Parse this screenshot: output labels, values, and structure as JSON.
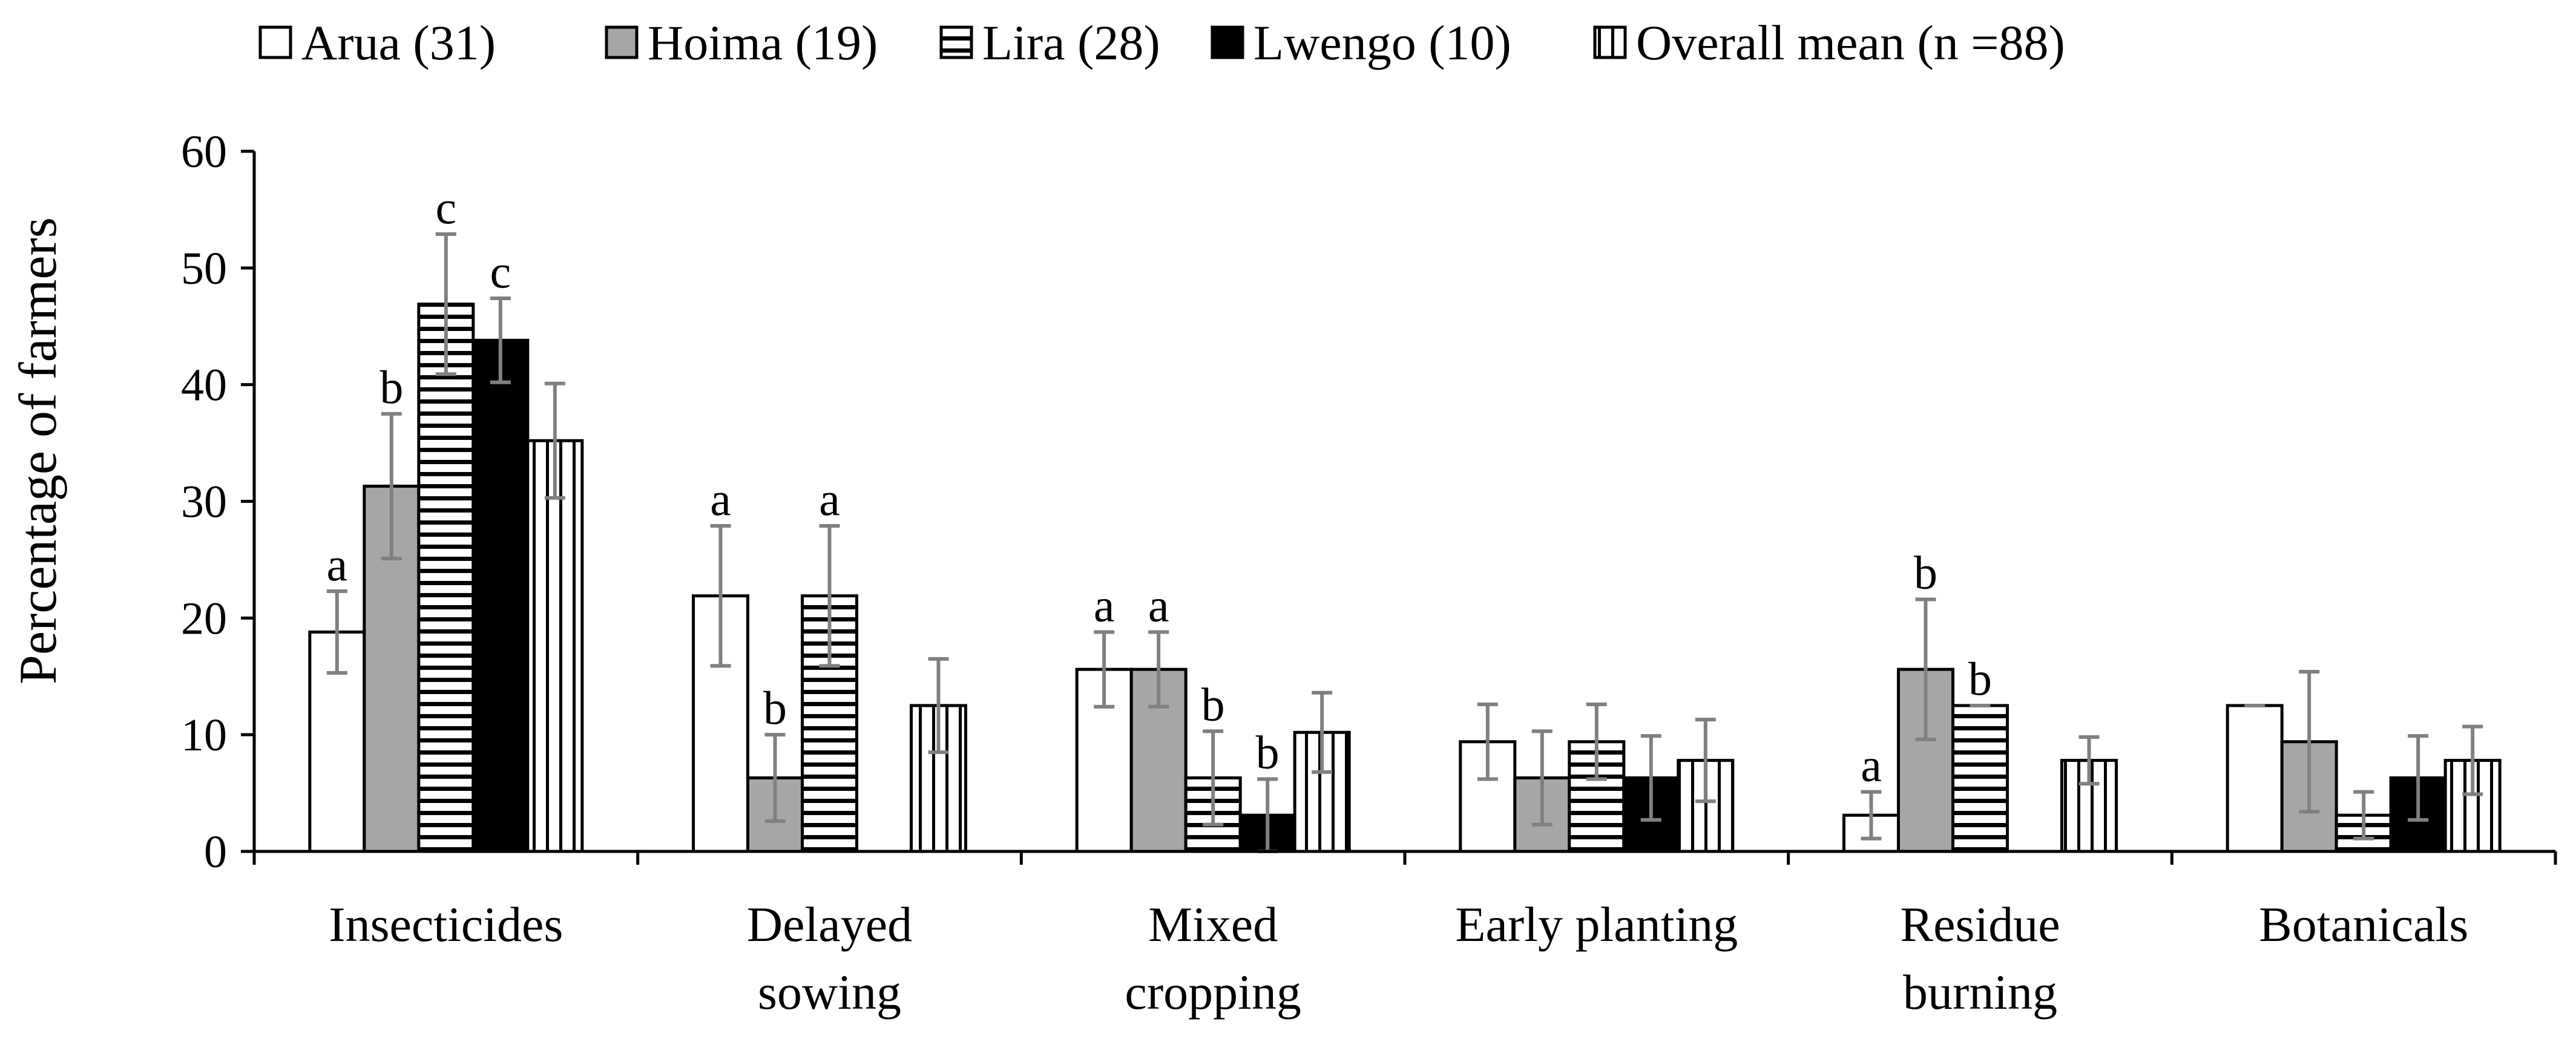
{
  "chart_data": {
    "type": "bar",
    "title": "",
    "xlabel": "",
    "ylabel": "Percentage of farmers",
    "ylim": [
      0,
      60
    ],
    "yticks": [
      "0",
      "10",
      "20",
      "30",
      "40",
      "50",
      "60"
    ],
    "grid": false,
    "legend_position": "top",
    "categories": [
      [
        "Insecticides"
      ],
      [
        "Delayed",
        "sowing"
      ],
      [
        "Mixed",
        "cropping"
      ],
      [
        "Early planting"
      ],
      [
        "Residue",
        "burning"
      ],
      [
        "Botanicals"
      ]
    ],
    "series": [
      {
        "name": "Arua (31)",
        "pattern": "white",
        "values": [
          18.8,
          21.9,
          15.6,
          9.4,
          3.1,
          12.5
        ],
        "errors": [
          3.5,
          6.0,
          3.2,
          3.2,
          2.0,
          0.0
        ],
        "labels": [
          "a",
          "a",
          "a",
          "",
          "a",
          ""
        ]
      },
      {
        "name": "Hoima (19)",
        "pattern": "gray",
        "values": [
          31.3,
          6.3,
          15.6,
          6.3,
          15.6,
          9.4
        ],
        "errors": [
          6.2,
          3.7,
          3.2,
          4.0,
          6.0,
          6.0
        ],
        "labels": [
          "b",
          "b",
          "a",
          "",
          "b",
          ""
        ]
      },
      {
        "name": "Lira (28)",
        "pattern": "hstripes",
        "values": [
          46.9,
          21.9,
          6.3,
          9.4,
          12.5,
          3.1
        ],
        "errors": [
          6.0,
          6.0,
          4.0,
          3.2,
          0.0,
          2.0
        ],
        "labels": [
          "c",
          "a",
          "b",
          "",
          "b",
          ""
        ]
      },
      {
        "name": "Lwengo (10)",
        "pattern": "black",
        "values": [
          43.8,
          0,
          3.1,
          6.3,
          0,
          6.3
        ],
        "errors": [
          3.6,
          0,
          3.1,
          3.6,
          0,
          3.6
        ],
        "labels": [
          "c",
          "",
          "b",
          "",
          "",
          ""
        ]
      },
      {
        "name": "Overall mean (n =88)",
        "pattern": "vstripes",
        "values": [
          35.2,
          12.5,
          10.2,
          7.8,
          7.8,
          7.8
        ],
        "errors": [
          4.9,
          4.0,
          3.4,
          3.5,
          2.0,
          2.9
        ],
        "labels": [
          "",
          "",
          "",
          "",
          "",
          ""
        ]
      }
    ],
    "colors": {
      "white": "#ffffff",
      "gray": "#a6a6a6",
      "black": "#000000",
      "stroke": "#000000",
      "errorbar": "#808080"
    }
  }
}
